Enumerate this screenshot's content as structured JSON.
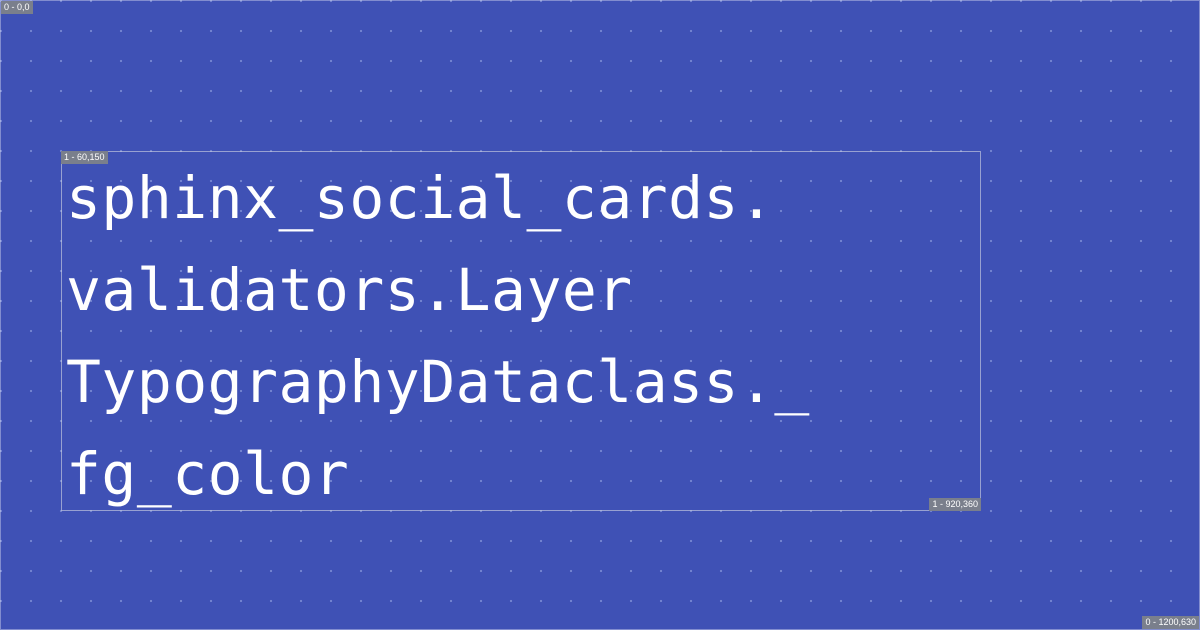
{
  "canvas": {
    "label_top_left": "0 - 0,0",
    "label_bottom_right": "0 - 1200,630",
    "background_color": "#3f51b5"
  },
  "layer": {
    "label_top_left": "1 - 60,150",
    "label_bottom_right": "1 - 920,360",
    "title": "sphinx_social_cards.\nvalidators.Layer\nTypographyDataclass._\nfg_color",
    "text_color": "#ffffff"
  }
}
